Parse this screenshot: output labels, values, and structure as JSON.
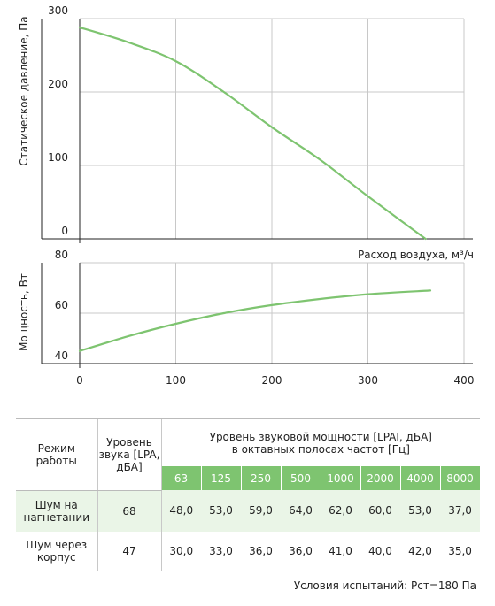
{
  "chart_data": [
    {
      "type": "line",
      "ylabel": "Статическое давление, Па",
      "xlabel": "Расход воздуха, м³/ч",
      "xlim": [
        0,
        400
      ],
      "ylim": [
        0,
        300
      ],
      "yticks": [
        "0",
        "100",
        "200",
        "300"
      ],
      "grid": true,
      "series": [
        {
          "color": "#7ec470",
          "x": [
            0,
            50,
            100,
            150,
            200,
            250,
            300,
            360
          ],
          "y": [
            288,
            268,
            242,
            200,
            152,
            108,
            58,
            0
          ]
        }
      ]
    },
    {
      "type": "line",
      "ylabel": "Мощность, Вт",
      "xlim": [
        0,
        400
      ],
      "ylim": [
        40,
        80
      ],
      "xticks": [
        "0",
        "100",
        "200",
        "300",
        "400"
      ],
      "yticks": [
        "40",
        "60",
        "80"
      ],
      "grid": true,
      "series": [
        {
          "color": "#7ec470",
          "x": [
            0,
            50,
            100,
            150,
            200,
            250,
            300,
            365
          ],
          "y": [
            45,
            50.8,
            55.8,
            60,
            63.2,
            65.6,
            67.5,
            69
          ]
        }
      ]
    }
  ],
  "table": {
    "mode_header": "Режим работы",
    "level_header": "Уровень звука [LPA, дБА]",
    "power_header_line1": "Уровень звуковой мощности [LPAI, дБА]",
    "power_header_line2": "в октавных полосах частот [Гц]",
    "bands": [
      "63",
      "125",
      "250",
      "500",
      "1000",
      "2000",
      "4000",
      "8000"
    ],
    "rows": [
      {
        "mode": "Шум на нагнетании",
        "level": "68",
        "values": [
          "48,0",
          "53,0",
          "59,0",
          "64,0",
          "62,0",
          "60,0",
          "53,0",
          "37,0"
        ]
      },
      {
        "mode": "Шум через корпус",
        "level": "47",
        "values": [
          "30,0",
          "33,0",
          "36,0",
          "36,0",
          "41,0",
          "40,0",
          "42,0",
          "35,0"
        ]
      }
    ]
  },
  "conditions": "Условия испытаний: Pст=180 Па",
  "colors": {
    "curve": "#7ec470",
    "band_bg": "#7ec470",
    "row_shade": "#eaf5e7"
  }
}
